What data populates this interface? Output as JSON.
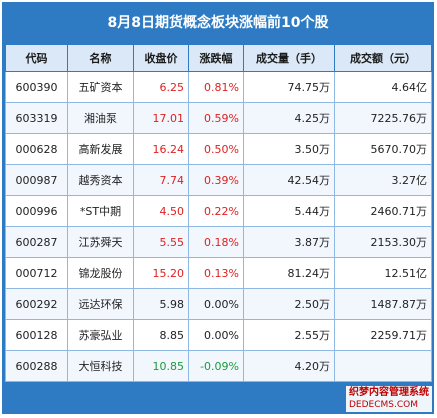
{
  "title": "8月8日期货概念板块涨幅前10个股",
  "headers": [
    "代码",
    "名称",
    "收盘价",
    "涨跌幅",
    "成交量（手）",
    "成交额（元）"
  ],
  "rows": [
    {
      "code": "600390",
      "name": "五矿资本",
      "close": "6.25",
      "change": "0.81%",
      "volume": "74.75万",
      "amount": "4.64亿",
      "dir": "up"
    },
    {
      "code": "603319",
      "name": "湘油泵",
      "close": "17.01",
      "change": "0.59%",
      "volume": "4.25万",
      "amount": "7225.76万",
      "dir": "up"
    },
    {
      "code": "000628",
      "name": "高新发展",
      "close": "16.24",
      "change": "0.50%",
      "volume": "3.50万",
      "amount": "5670.70万",
      "dir": "up"
    },
    {
      "code": "000987",
      "name": "越秀资本",
      "close": "7.74",
      "change": "0.39%",
      "volume": "42.54万",
      "amount": "3.27亿",
      "dir": "up"
    },
    {
      "code": "000996",
      "name": "*ST中期",
      "close": "4.50",
      "change": "0.22%",
      "volume": "5.44万",
      "amount": "2460.71万",
      "dir": "up"
    },
    {
      "code": "600287",
      "name": "江苏舜天",
      "close": "5.55",
      "change": "0.18%",
      "volume": "3.87万",
      "amount": "2153.30万",
      "dir": "up"
    },
    {
      "code": "000712",
      "name": "锦龙股份",
      "close": "15.20",
      "change": "0.13%",
      "volume": "81.24万",
      "amount": "12.51亿",
      "dir": "up"
    },
    {
      "code": "600292",
      "name": "远达环保",
      "close": "5.98",
      "change": "0.00%",
      "volume": "2.50万",
      "amount": "1487.87万",
      "dir": "flat"
    },
    {
      "code": "600128",
      "name": "苏豪弘业",
      "close": "8.85",
      "change": "0.00%",
      "volume": "2.55万",
      "amount": "2259.71万",
      "dir": "flat"
    },
    {
      "code": "600288",
      "name": "大恒科技",
      "close": "10.85",
      "change": "-0.09%",
      "volume": "4.20万",
      "amount": "",
      "dir": "down"
    }
  ],
  "watermark": {
    "line1": "织梦内容管理系统",
    "line2": "DEDECMS.COM"
  },
  "colors": {
    "header_band": "#2e7bc4",
    "up": "#e02020",
    "down": "#1a9a3a"
  }
}
